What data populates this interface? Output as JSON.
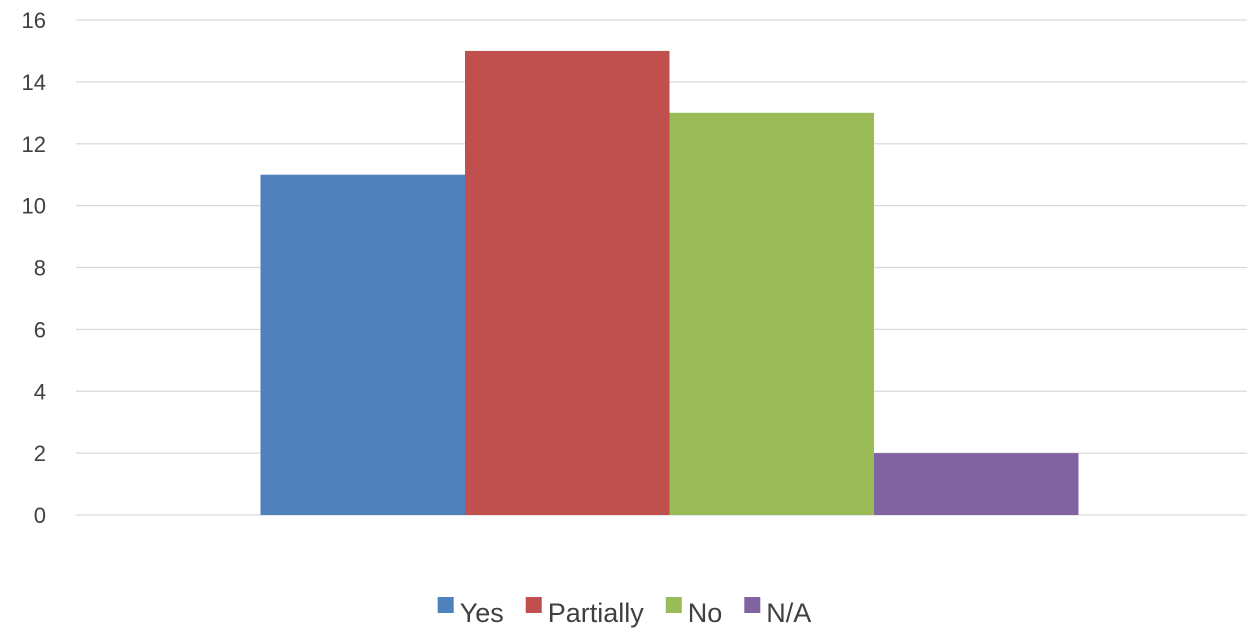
{
  "chart_data": {
    "type": "bar",
    "title": "",
    "xlabel": "",
    "ylabel": "",
    "categories": [
      ""
    ],
    "series": [
      {
        "name": "Yes",
        "values": [
          11
        ],
        "color": "#4f81bd"
      },
      {
        "name": "Partially",
        "values": [
          15
        ],
        "color": "#c0504d"
      },
      {
        "name": "No",
        "values": [
          13
        ],
        "color": "#9bbb59"
      },
      {
        "name": "N/A",
        "values": [
          2
        ],
        "color": "#8064a2"
      }
    ],
    "ylim": [
      0,
      16
    ],
    "yticks": [
      "0",
      "2",
      "4",
      "6",
      "8",
      "10",
      "12",
      "14",
      "16"
    ],
    "grid": true,
    "legend_position": "bottom",
    "gridline_color": "#d9d9d9",
    "text_color": "#404040"
  }
}
